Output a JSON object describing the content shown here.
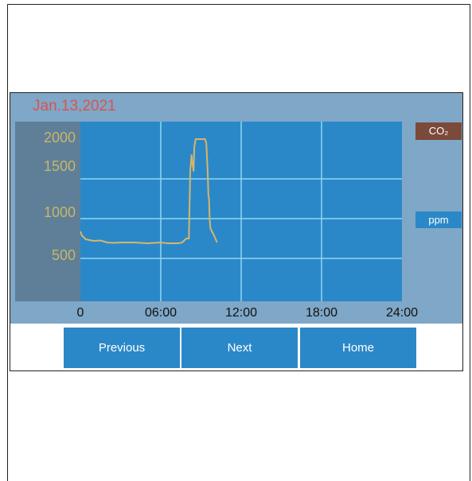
{
  "screen": {
    "date": "Jan.13,2021",
    "unit_badge": "ppm"
  },
  "gas_badge": {
    "prefix": "CO",
    "subscript": "₂"
  },
  "buttons": {
    "previous": "Previous",
    "next": "Next",
    "home": "Home"
  },
  "colors": {
    "plot_background": "#2b88c8",
    "axis_panel": "#5f7f98",
    "frame_background": "#7fa7c7",
    "line": "#d6b56a",
    "date_text": "#d9544f",
    "badge_co2": "#7b4a3a",
    "button": "#2b88c8"
  },
  "chart_data": {
    "type": "line",
    "title": "",
    "xlabel": "",
    "ylabel": "",
    "x_ticks": [
      "0",
      "06:00",
      "12:00",
      "18:00",
      "24:00"
    ],
    "y_ticks": [
      "2000",
      "1500",
      "1000",
      "500"
    ],
    "xlim": [
      0,
      24
    ],
    "ylim": [
      0,
      2000
    ],
    "grid": true,
    "series": [
      {
        "name": "",
        "x": [
          0,
          0.1,
          0.4,
          1,
          1.5,
          2,
          2.5,
          3,
          4,
          5,
          6,
          6.5,
          7,
          7.3,
          7.6,
          7.9,
          8.1,
          8.2,
          8.3,
          8.35,
          8.4,
          8.45,
          8.5,
          8.6,
          8.7,
          8.8,
          9.1,
          9.2,
          9.3,
          9.4,
          9.5,
          9.55,
          9.6,
          9.65,
          9.7,
          10.0,
          10.2
        ],
        "y": [
          840,
          790,
          740,
          720,
          725,
          700,
          695,
          700,
          700,
          690,
          700,
          690,
          690,
          690,
          700,
          750,
          750,
          1600,
          1800,
          1700,
          1650,
          1600,
          1900,
          2000,
          2000,
          2000,
          2000,
          2000,
          2000,
          1950,
          1600,
          1300,
          1250,
          1000,
          880,
          780,
          700
        ]
      }
    ]
  }
}
